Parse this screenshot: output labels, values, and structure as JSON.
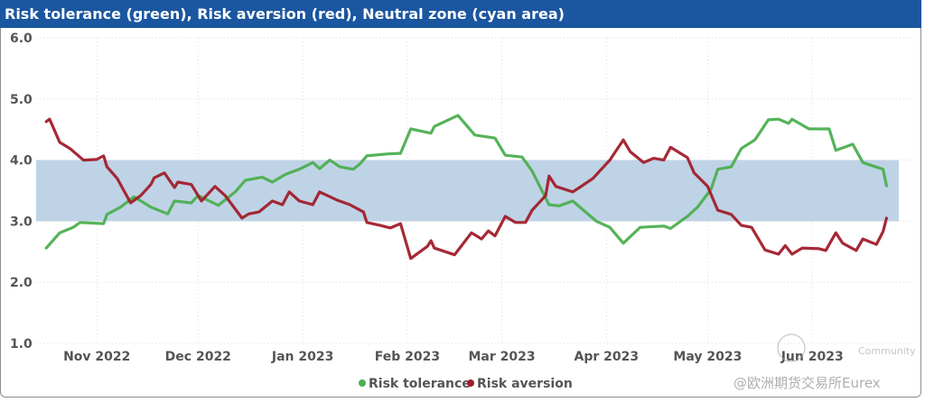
{
  "chart_data": {
    "type": "line",
    "title": "Risk tolerance (green), Risk aversion (red), Neutral zone (cyan area)",
    "xlabel": "",
    "ylabel": "",
    "ylim": [
      1,
      6
    ],
    "xlim": [
      "2022-10-14",
      "2023-07-02"
    ],
    "y_ticks": [
      "6.0",
      "5.0",
      "4.0",
      "3.0",
      "2.0",
      "1.0"
    ],
    "x_ticks": [
      {
        "label": "Nov 2022",
        "date": "2022-11-01"
      },
      {
        "label": "Dec 2022",
        "date": "2022-12-01"
      },
      {
        "label": "Jan 2023",
        "date": "2023-01-01"
      },
      {
        "label": "Feb 2023",
        "date": "2023-02-01"
      },
      {
        "label": "Mar 2023",
        "date": "2023-03-01"
      },
      {
        "label": "Apr 2023",
        "date": "2023-04-01"
      },
      {
        "label": "May 2023",
        "date": "2023-05-01"
      },
      {
        "label": "Jun 2023",
        "date": "2023-06-01"
      }
    ],
    "grid": true,
    "legend_position": "bottom",
    "neutral_zone": {
      "from": 3.0,
      "to": 4.0,
      "color": "#bfd3e6"
    },
    "series": [
      {
        "name": "Risk tolerance",
        "color": "#4caf50",
        "points": [
          [
            "2022-10-17",
            2.56
          ],
          [
            "2022-10-21",
            2.81
          ],
          [
            "2022-10-25",
            2.9
          ],
          [
            "2022-10-27",
            2.98
          ],
          [
            "2022-11-03",
            2.96
          ],
          [
            "2022-11-04",
            3.11
          ],
          [
            "2022-11-08",
            3.23
          ],
          [
            "2022-11-12",
            3.4
          ],
          [
            "2022-11-17",
            3.23
          ],
          [
            "2022-11-22",
            3.12
          ],
          [
            "2022-11-24",
            3.33
          ],
          [
            "2022-11-29",
            3.3
          ],
          [
            "2022-12-01",
            3.42
          ],
          [
            "2022-12-07",
            3.26
          ],
          [
            "2022-12-12",
            3.48
          ],
          [
            "2022-12-15",
            3.67
          ],
          [
            "2022-12-20",
            3.72
          ],
          [
            "2022-12-23",
            3.64
          ],
          [
            "2022-12-27",
            3.77
          ],
          [
            "2022-12-31",
            3.85
          ],
          [
            "2023-01-04",
            3.96
          ],
          [
            "2023-01-06",
            3.86
          ],
          [
            "2023-01-09",
            4.0
          ],
          [
            "2023-01-12",
            3.89
          ],
          [
            "2023-01-16",
            3.85
          ],
          [
            "2023-01-18",
            3.94
          ],
          [
            "2023-01-20",
            4.07
          ],
          [
            "2023-01-26",
            4.1
          ],
          [
            "2023-01-30",
            4.11
          ],
          [
            "2023-02-02",
            4.51
          ],
          [
            "2023-02-08",
            4.44
          ],
          [
            "2023-02-09",
            4.55
          ],
          [
            "2023-02-16",
            4.73
          ],
          [
            "2023-02-21",
            4.41
          ],
          [
            "2023-02-27",
            4.36
          ],
          [
            "2023-03-02",
            4.08
          ],
          [
            "2023-03-07",
            4.05
          ],
          [
            "2023-03-10",
            3.82
          ],
          [
            "2023-03-15",
            3.27
          ],
          [
            "2023-03-18",
            3.25
          ],
          [
            "2023-03-22",
            3.33
          ],
          [
            "2023-03-29",
            3.0
          ],
          [
            "2023-04-02",
            2.9
          ],
          [
            "2023-04-06",
            2.64
          ],
          [
            "2023-04-11",
            2.9
          ],
          [
            "2023-04-18",
            2.92
          ],
          [
            "2023-04-20",
            2.88
          ],
          [
            "2023-04-25",
            3.08
          ],
          [
            "2023-04-28",
            3.23
          ],
          [
            "2023-05-02",
            3.52
          ],
          [
            "2023-05-04",
            3.85
          ],
          [
            "2023-05-08",
            3.89
          ],
          [
            "2023-05-11",
            4.19
          ],
          [
            "2023-05-15",
            4.33
          ],
          [
            "2023-05-19",
            4.66
          ],
          [
            "2023-05-22",
            4.67
          ],
          [
            "2023-05-25",
            4.6
          ],
          [
            "2023-05-26",
            4.67
          ],
          [
            "2023-05-31",
            4.51
          ],
          [
            "2023-06-06",
            4.51
          ],
          [
            "2023-06-08",
            4.16
          ],
          [
            "2023-06-13",
            4.26
          ],
          [
            "2023-06-16",
            3.96
          ],
          [
            "2023-06-22",
            3.85
          ],
          [
            "2023-06-23",
            3.58
          ]
        ]
      },
      {
        "name": "Risk aversion",
        "color": "#a11d2b",
        "points": [
          [
            "2022-10-17",
            4.63
          ],
          [
            "2022-10-18",
            4.67
          ],
          [
            "2022-10-21",
            4.29
          ],
          [
            "2022-10-24",
            4.19
          ],
          [
            "2022-10-28",
            4.0
          ],
          [
            "2022-11-01",
            4.01
          ],
          [
            "2022-11-03",
            4.07
          ],
          [
            "2022-11-04",
            3.89
          ],
          [
            "2022-11-07",
            3.7
          ],
          [
            "2022-11-11",
            3.3
          ],
          [
            "2022-11-14",
            3.42
          ],
          [
            "2022-11-17",
            3.6
          ],
          [
            "2022-11-18",
            3.71
          ],
          [
            "2022-11-21",
            3.79
          ],
          [
            "2022-11-24",
            3.55
          ],
          [
            "2022-11-25",
            3.64
          ],
          [
            "2022-11-29",
            3.6
          ],
          [
            "2022-12-02",
            3.33
          ],
          [
            "2022-12-06",
            3.57
          ],
          [
            "2022-12-09",
            3.42
          ],
          [
            "2022-12-14",
            3.05
          ],
          [
            "2022-12-16",
            3.12
          ],
          [
            "2022-12-19",
            3.15
          ],
          [
            "2022-12-23",
            3.33
          ],
          [
            "2022-12-26",
            3.27
          ],
          [
            "2022-12-28",
            3.48
          ],
          [
            "2022-12-31",
            3.33
          ],
          [
            "2023-01-04",
            3.27
          ],
          [
            "2023-01-06",
            3.48
          ],
          [
            "2023-01-11",
            3.35
          ],
          [
            "2023-01-15",
            3.27
          ],
          [
            "2023-01-19",
            3.15
          ],
          [
            "2023-01-20",
            2.98
          ],
          [
            "2023-01-24",
            2.93
          ],
          [
            "2023-01-27",
            2.89
          ],
          [
            "2023-01-30",
            2.96
          ],
          [
            "2023-02-02",
            2.39
          ],
          [
            "2023-02-07",
            2.59
          ],
          [
            "2023-02-08",
            2.68
          ],
          [
            "2023-02-09",
            2.56
          ],
          [
            "2023-02-15",
            2.45
          ],
          [
            "2023-02-20",
            2.81
          ],
          [
            "2023-02-23",
            2.71
          ],
          [
            "2023-02-25",
            2.84
          ],
          [
            "2023-02-27",
            2.76
          ],
          [
            "2023-03-02",
            3.08
          ],
          [
            "2023-03-05",
            2.98
          ],
          [
            "2023-03-08",
            2.98
          ],
          [
            "2023-03-10",
            3.18
          ],
          [
            "2023-03-14",
            3.42
          ],
          [
            "2023-03-15",
            3.74
          ],
          [
            "2023-03-17",
            3.57
          ],
          [
            "2023-03-22",
            3.48
          ],
          [
            "2023-03-24",
            3.55
          ],
          [
            "2023-03-28",
            3.7
          ],
          [
            "2023-04-02",
            4.0
          ],
          [
            "2023-04-06",
            4.33
          ],
          [
            "2023-04-08",
            4.14
          ],
          [
            "2023-04-12",
            3.96
          ],
          [
            "2023-04-15",
            4.03
          ],
          [
            "2023-04-18",
            4.0
          ],
          [
            "2023-04-20",
            4.21
          ],
          [
            "2023-04-25",
            4.04
          ],
          [
            "2023-04-27",
            3.79
          ],
          [
            "2023-05-01",
            3.57
          ],
          [
            "2023-05-04",
            3.18
          ],
          [
            "2023-05-08",
            3.11
          ],
          [
            "2023-05-11",
            2.93
          ],
          [
            "2023-05-14",
            2.9
          ],
          [
            "2023-05-18",
            2.53
          ],
          [
            "2023-05-22",
            2.46
          ],
          [
            "2023-05-24",
            2.6
          ],
          [
            "2023-05-26",
            2.46
          ],
          [
            "2023-05-29",
            2.56
          ],
          [
            "2023-06-03",
            2.55
          ],
          [
            "2023-06-05",
            2.52
          ],
          [
            "2023-06-08",
            2.81
          ],
          [
            "2023-06-10",
            2.64
          ],
          [
            "2023-06-14",
            2.52
          ],
          [
            "2023-06-16",
            2.71
          ],
          [
            "2023-06-20",
            2.62
          ],
          [
            "2023-06-22",
            2.83
          ],
          [
            "2023-06-23",
            3.05
          ]
        ]
      }
    ]
  },
  "watermark": {
    "community": "Community",
    "handle": "@欧洲期货交易所Eurex"
  }
}
